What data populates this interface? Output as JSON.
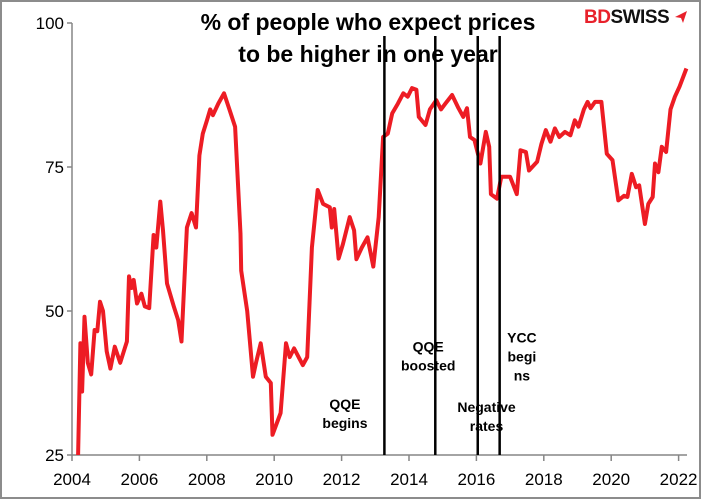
{
  "chart_data": {
    "type": "line",
    "title": "% of people who expect prices to be higher in one year",
    "title_lines": [
      "% of people who expect prices",
      "to be higher in one year"
    ],
    "xlabel": "",
    "ylabel": "",
    "xlim": [
      2004,
      2022.25
    ],
    "ylim": [
      25,
      100
    ],
    "x_ticks": [
      "2004",
      "2006",
      "2008",
      "2010",
      "2012",
      "2014",
      "2016",
      "2018",
      "2020",
      "2022"
    ],
    "y_ticks": [
      "25",
      "50",
      "75",
      "100"
    ],
    "grid": false,
    "series": [
      {
        "color": "#ed1c24",
        "points": [
          [
            2004.18,
            25
          ],
          [
            2004.25,
            44.4
          ],
          [
            2004.3,
            36
          ],
          [
            2004.37,
            49
          ],
          [
            2004.47,
            41
          ],
          [
            2004.57,
            39
          ],
          [
            2004.67,
            46.7
          ],
          [
            2004.75,
            46.5
          ],
          [
            2004.83,
            51.6
          ],
          [
            2004.92,
            50
          ],
          [
            2005.03,
            43
          ],
          [
            2005.14,
            40
          ],
          [
            2005.27,
            43.8
          ],
          [
            2005.43,
            41
          ],
          [
            2005.63,
            44.7
          ],
          [
            2005.69,
            56
          ],
          [
            2005.77,
            54
          ],
          [
            2005.83,
            55.4
          ],
          [
            2005.93,
            51.3
          ],
          [
            2006.06,
            53
          ],
          [
            2006.16,
            50.8
          ],
          [
            2006.29,
            50.5
          ],
          [
            2006.42,
            63.2
          ],
          [
            2006.5,
            61
          ],
          [
            2006.62,
            69
          ],
          [
            2006.7,
            64
          ],
          [
            2006.82,
            54.8
          ],
          [
            2007.02,
            50.8
          ],
          [
            2007.15,
            48.4
          ],
          [
            2007.25,
            44.7
          ],
          [
            2007.41,
            64.5
          ],
          [
            2007.55,
            67
          ],
          [
            2007.68,
            64.5
          ],
          [
            2007.78,
            77
          ],
          [
            2007.88,
            80.8
          ],
          [
            2008.0,
            83
          ],
          [
            2008.1,
            85
          ],
          [
            2008.18,
            84
          ],
          [
            2008.34,
            86
          ],
          [
            2008.51,
            87.8
          ],
          [
            2008.67,
            85
          ],
          [
            2008.84,
            82
          ],
          [
            2009.0,
            63.4
          ],
          [
            2009.02,
            57
          ],
          [
            2009.2,
            50
          ],
          [
            2009.37,
            38.6
          ],
          [
            2009.46,
            41
          ],
          [
            2009.6,
            44.4
          ],
          [
            2009.75,
            38.6
          ],
          [
            2009.9,
            37.5
          ],
          [
            2009.95,
            28.5
          ],
          [
            2010.19,
            32.3
          ],
          [
            2010.35,
            44.4
          ],
          [
            2010.46,
            42
          ],
          [
            2010.59,
            43.5
          ],
          [
            2010.85,
            40.6
          ],
          [
            2010.98,
            42
          ],
          [
            2011.12,
            61
          ],
          [
            2011.29,
            71
          ],
          [
            2011.45,
            68.6
          ],
          [
            2011.65,
            68
          ],
          [
            2011.71,
            64.5
          ],
          [
            2011.78,
            67.7
          ],
          [
            2011.91,
            59.1
          ],
          [
            2012.04,
            61.6
          ],
          [
            2012.24,
            66.3
          ],
          [
            2012.37,
            64
          ],
          [
            2012.44,
            59
          ],
          [
            2012.6,
            61
          ],
          [
            2012.77,
            62.8
          ],
          [
            2012.94,
            57.7
          ],
          [
            2013.1,
            66.3
          ],
          [
            2013.23,
            80.2
          ],
          [
            2013.37,
            80.8
          ],
          [
            2013.5,
            84.3
          ],
          [
            2013.67,
            86
          ],
          [
            2013.83,
            87.8
          ],
          [
            2013.96,
            87.2
          ],
          [
            2014.09,
            88.7
          ],
          [
            2014.22,
            88.4
          ],
          [
            2014.29,
            83.7
          ],
          [
            2014.49,
            82.3
          ],
          [
            2014.62,
            85
          ],
          [
            2014.81,
            86.6
          ],
          [
            2014.95,
            85
          ],
          [
            2015.08,
            86
          ],
          [
            2015.28,
            87.5
          ],
          [
            2015.47,
            85.2
          ],
          [
            2015.61,
            83.7
          ],
          [
            2015.72,
            85.2
          ],
          [
            2015.81,
            80.2
          ],
          [
            2015.94,
            79.7
          ],
          [
            2016.12,
            75.6
          ],
          [
            2016.28,
            81.1
          ],
          [
            2016.38,
            78.5
          ],
          [
            2016.43,
            70.3
          ],
          [
            2016.61,
            69.5
          ],
          [
            2016.74,
            73.3
          ],
          [
            2017.0,
            73.3
          ],
          [
            2017.2,
            70.3
          ],
          [
            2017.31,
            77.9
          ],
          [
            2017.47,
            77.6
          ],
          [
            2017.56,
            74.4
          ],
          [
            2017.8,
            75.9
          ],
          [
            2017.93,
            79
          ],
          [
            2018.06,
            81.4
          ],
          [
            2018.2,
            79.4
          ],
          [
            2018.33,
            81.7
          ],
          [
            2018.46,
            80.2
          ],
          [
            2018.63,
            81.1
          ],
          [
            2018.79,
            80.5
          ],
          [
            2018.92,
            83.1
          ],
          [
            2019.03,
            82
          ],
          [
            2019.19,
            85
          ],
          [
            2019.3,
            86.3
          ],
          [
            2019.39,
            85.2
          ],
          [
            2019.52,
            86.3
          ],
          [
            2019.71,
            86.3
          ],
          [
            2019.87,
            77.3
          ],
          [
            2020.04,
            76.2
          ],
          [
            2020.21,
            69.2
          ],
          [
            2020.38,
            70
          ],
          [
            2020.48,
            69.8
          ],
          [
            2020.61,
            73.8
          ],
          [
            2020.74,
            71.5
          ],
          [
            2020.83,
            71.8
          ],
          [
            2021.0,
            65.1
          ],
          [
            2021.1,
            68.6
          ],
          [
            2021.23,
            69.8
          ],
          [
            2021.3,
            75.6
          ],
          [
            2021.4,
            74.1
          ],
          [
            2021.5,
            78.5
          ],
          [
            2021.63,
            77.6
          ],
          [
            2021.76,
            85
          ],
          [
            2021.89,
            87.2
          ],
          [
            2022.03,
            89
          ],
          [
            2022.23,
            92.1
          ]
        ]
      }
    ],
    "events": [
      {
        "x": 2013.27,
        "label_lines": [
          "QQE",
          "begins"
        ],
        "label_x": 2012.1,
        "label_y": 33
      },
      {
        "x": 2014.78,
        "label_lines": [
          "QQE",
          "boosted"
        ],
        "label_x": 2014.57,
        "label_y": 43
      },
      {
        "x": 2016.04,
        "label_lines": [
          "Negative",
          "rates"
        ],
        "label_x": 2016.3,
        "label_y": 32.5
      },
      {
        "x": 2016.69,
        "label_lines": [
          "YCC",
          "begi",
          "ns"
        ],
        "label_x": 2017.35,
        "label_y": 44.5
      }
    ]
  },
  "logo": {
    "text_red": "BD",
    "text_black": "SWISS",
    "icon": "arrow-plane-icon",
    "brand_color": "#e8212b"
  }
}
